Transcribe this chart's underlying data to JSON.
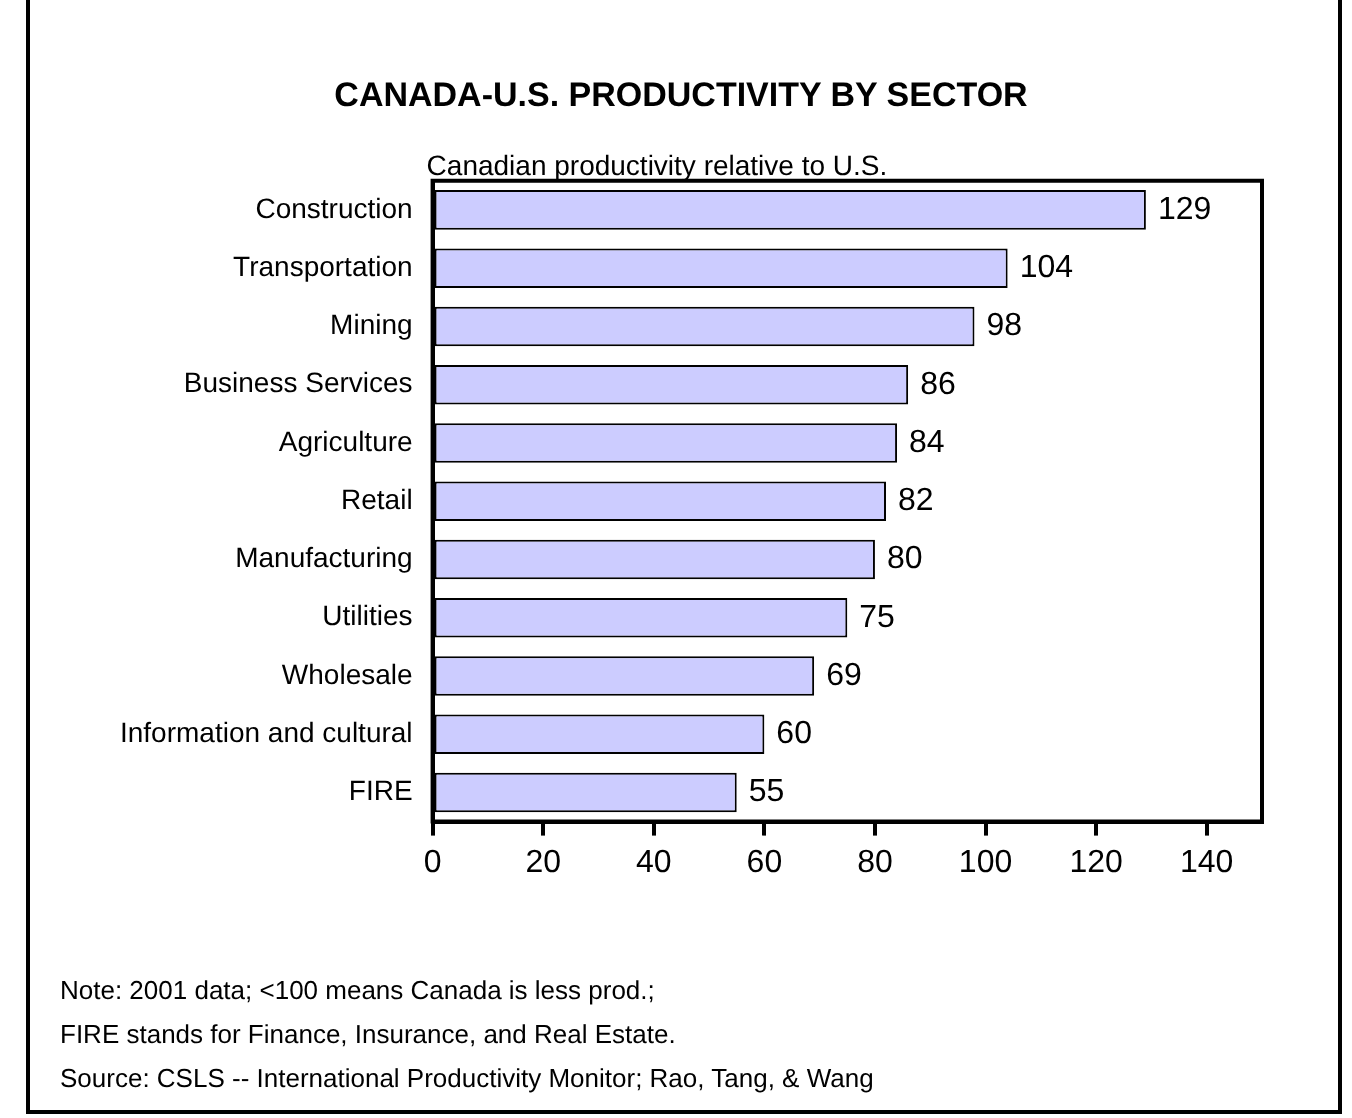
{
  "chart_data": {
    "type": "bar",
    "orientation": "horizontal",
    "title": "CANADA-U.S. PRODUCTIVITY BY SECTOR",
    "subtitle": "Canadian productivity relative to U.S.",
    "categories": [
      "Construction",
      "Transportation",
      "Mining",
      "Business Services",
      "Agriculture",
      "Retail",
      "Manufacturing",
      "Utilities",
      "Wholesale",
      "Information and cultural",
      "FIRE"
    ],
    "values": [
      129,
      104,
      98,
      86,
      84,
      82,
      80,
      75,
      69,
      60,
      55
    ],
    "color": "#ccccff",
    "data_labels": true,
    "grid": false,
    "legend": false,
    "xlim": [
      0,
      150
    ],
    "xticks": [
      0,
      20,
      40,
      60,
      80,
      100,
      120,
      140
    ],
    "annotations": [
      "Note: 2001 data; <100 means Canada is less prod.;",
      "FIRE stands for Finance, Insurance, and Real Estate.",
      "Source: CSLS -- International Productivity Monitor; Rao, Tang, & Wang"
    ]
  }
}
